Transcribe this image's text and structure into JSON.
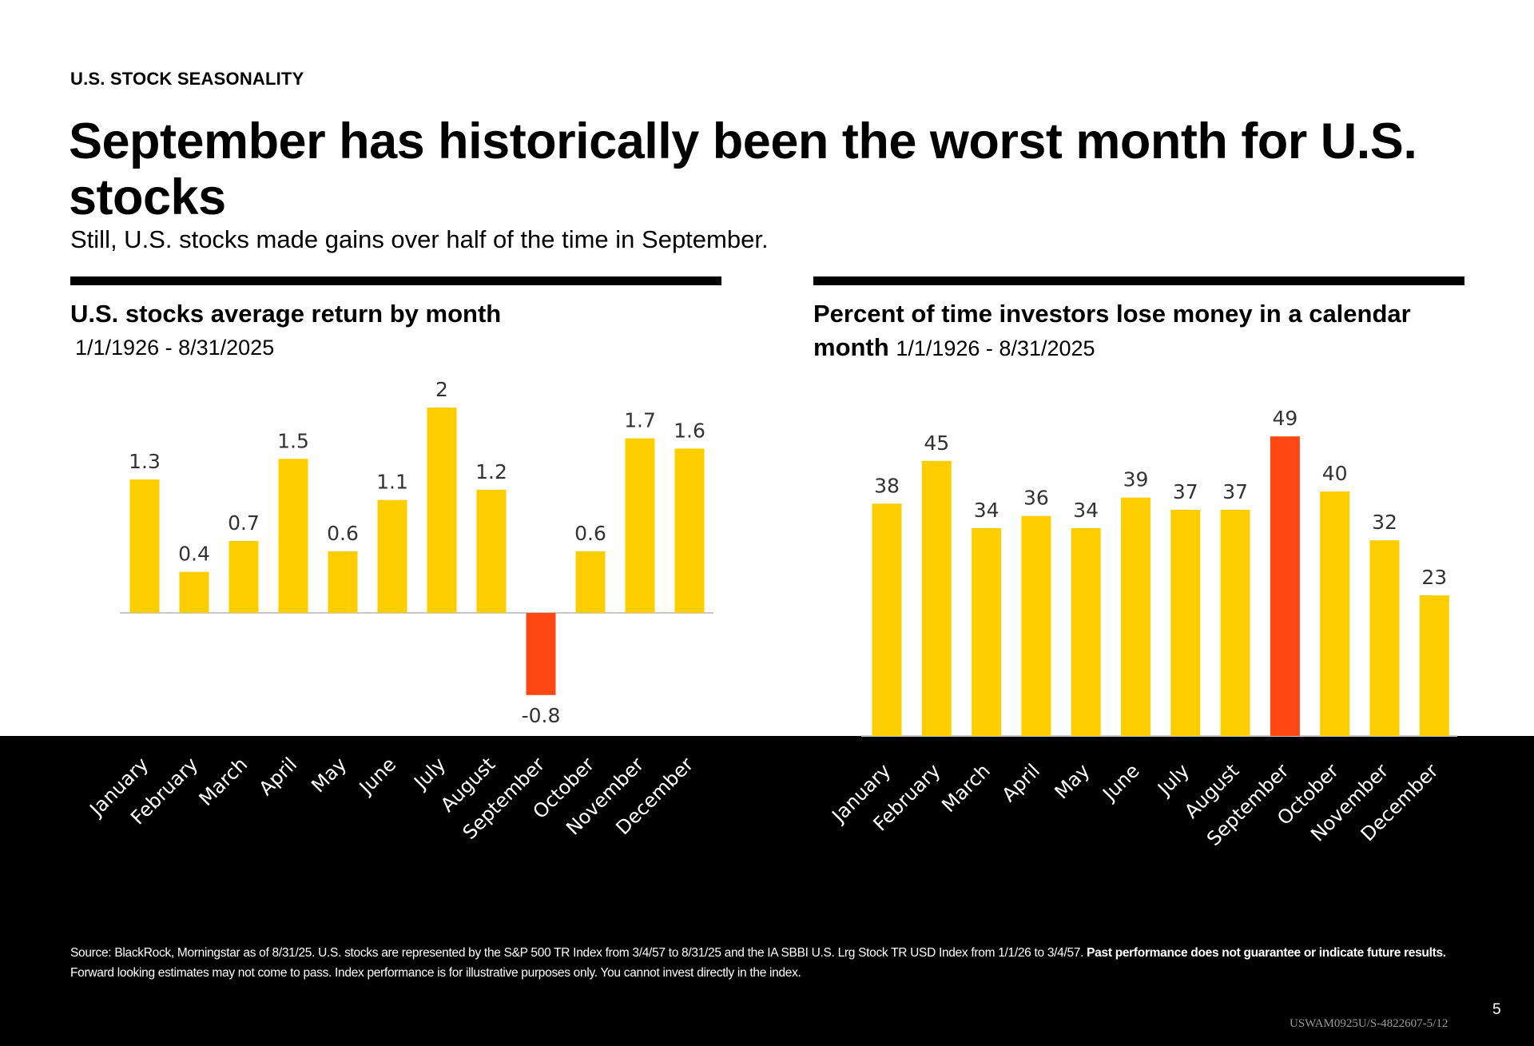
{
  "header": {
    "eyebrow": "U.S. STOCK SEASONALITY",
    "headline": "September has historically been the worst month for U.S. stocks",
    "subhead": "Still, U.S. stocks made gains over half of the time in September."
  },
  "colors": {
    "bar_default": "#FFCE00",
    "bar_highlight": "#FF4713",
    "baseline": "#C8C8C8",
    "footer_background": "#000000"
  },
  "panels": {
    "left": {
      "title": "U.S. stocks average return by month",
      "range": "1/1/1926 - 8/31/2025"
    },
    "right": {
      "title_bold": "Percent of time investors lose money in a calendar month",
      "range": "1/1/1926 - 8/31/2025"
    }
  },
  "chart_data": [
    {
      "type": "bar",
      "title": "U.S. stocks average return by month",
      "subtitle": "1/1/1926 - 8/31/2025",
      "xlabel": "",
      "ylabel": "",
      "categories": [
        "January",
        "February",
        "March",
        "April",
        "May",
        "June",
        "July",
        "August",
        "September",
        "October",
        "November",
        "December"
      ],
      "values": [
        1.3,
        0.4,
        0.7,
        1.5,
        0.6,
        1.1,
        2,
        1.2,
        -0.8,
        0.6,
        1.7,
        1.6
      ],
      "value_labels": [
        "1.3",
        "0.4",
        "0.7",
        "1.5",
        "0.6",
        "1.1",
        "2",
        "1.2",
        "-0.8",
        "0.6",
        "1.7",
        "1.6"
      ],
      "highlight": [
        "September"
      ],
      "ylim": [
        -0.8,
        2
      ],
      "grid": false,
      "legend": "none"
    },
    {
      "type": "bar",
      "title": "Percent of time investors lose money in a calendar month",
      "subtitle": "1/1/1926 - 8/31/2025",
      "xlabel": "",
      "ylabel": "",
      "categories": [
        "January",
        "February",
        "March",
        "April",
        "May",
        "June",
        "July",
        "August",
        "September",
        "October",
        "November",
        "December"
      ],
      "values": [
        38,
        45,
        34,
        36,
        34,
        39,
        37,
        37,
        49,
        40,
        32,
        23
      ],
      "value_labels": [
        "38",
        "45",
        "34",
        "36",
        "34",
        "39",
        "37",
        "37",
        "49",
        "40",
        "32",
        "23"
      ],
      "highlight": [
        "September"
      ],
      "ylim": [
        0,
        49
      ],
      "grid": false,
      "legend": "none"
    }
  ],
  "footer": {
    "source_text": "Source: BlackRock, Morningstar as of 8/31/25. U.S. stocks are represented by the S&P 500 TR Index from 3/4/57 to 8/31/25 and the IA SBBI U.S. Lrg Stock TR USD Index from 1/1/26 to 3/4/57. ",
    "disclaimer_bold": "Past performance does not guarantee or indicate future results.",
    "disclaimer_text": "  Forward looking estimates may not come to pass. Index performance is for illustrative purposes only. You cannot invest directly in the index.",
    "page_number": "5",
    "document_code": "USWAM0925U/S-4822607-5/12"
  }
}
